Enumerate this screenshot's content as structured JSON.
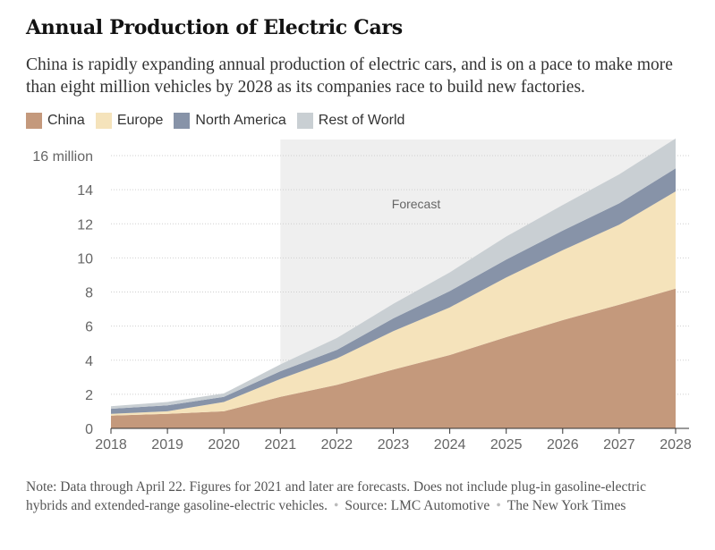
{
  "header": {
    "title": "Annual Production of Electric Cars",
    "subtitle": "China is rapidly expanding annual production of electric cars, and is on a pace to make more than eight million vehicles by 2028 as its companies race to build new factories."
  },
  "colors": {
    "China": "#c4997c",
    "Europe": "#f5e3bb",
    "North America": "#8793a8",
    "Rest of World": "#c9cfd3",
    "forecast_band": "#efefef"
  },
  "footer": {
    "note": "Note: Data through April 22. Figures for 2021 and later are forecasts. Does not include plug-in gasoline-electric hybrids and extended-range gasoline-electric vehicles.",
    "source": "Source: LMC Automotive",
    "credit": "The New York Times"
  },
  "chart_data": {
    "type": "area",
    "stacked": true,
    "title": "Annual Production of Electric Cars",
    "x": [
      2018,
      2019,
      2020,
      2021,
      2022,
      2023,
      2024,
      2025,
      2026,
      2027,
      2028
    ],
    "ylim": [
      0,
      16
    ],
    "y_ticks": [
      0,
      2,
      4,
      6,
      8,
      10,
      12,
      14,
      16
    ],
    "y_tick_labels": [
      "0",
      "2",
      "4",
      "6",
      "8",
      "10",
      "12",
      "14",
      "16 million"
    ],
    "grid": true,
    "legend": "top-left",
    "forecast_start": 2021,
    "annotation": "Forecast",
    "series": [
      {
        "name": "China",
        "values": [
          0.75,
          0.85,
          1.0,
          1.85,
          2.55,
          3.45,
          4.3,
          5.35,
          6.35,
          7.25,
          8.2
        ]
      },
      {
        "name": "Europe",
        "values": [
          0.1,
          0.15,
          0.55,
          1.05,
          1.55,
          2.25,
          2.8,
          3.5,
          4.1,
          4.7,
          5.7
        ]
      },
      {
        "name": "North America",
        "values": [
          0.3,
          0.35,
          0.3,
          0.45,
          0.5,
          0.75,
          0.95,
          1.05,
          1.15,
          1.25,
          1.35
        ]
      },
      {
        "name": "Rest of World",
        "values": [
          0.15,
          0.2,
          0.2,
          0.4,
          0.7,
          0.85,
          1.1,
          1.35,
          1.5,
          1.7,
          1.75
        ]
      }
    ]
  }
}
